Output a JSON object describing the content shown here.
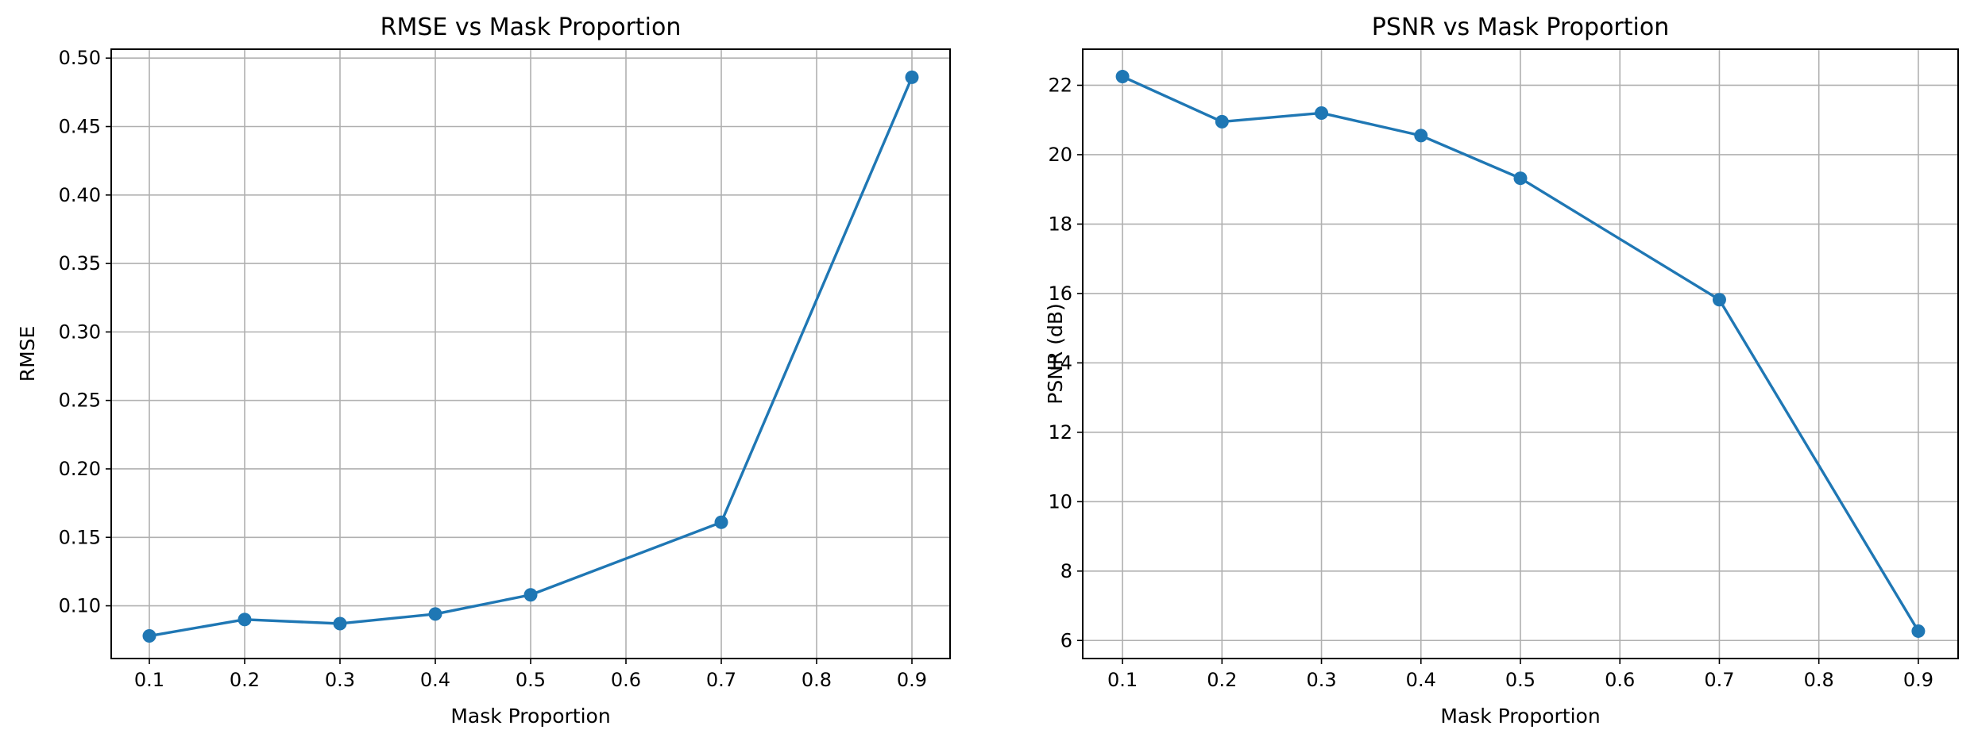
{
  "colors": {
    "series": "#1f77b4",
    "grid": "#b0b0b0",
    "axes": "#000000"
  },
  "chart_data": [
    {
      "type": "line",
      "title": "RMSE vs Mask Proportion",
      "xlabel": "Mask Proportion",
      "ylabel": "RMSE",
      "x": [
        0.1,
        0.2,
        0.3,
        0.4,
        0.5,
        0.7,
        0.9
      ],
      "series": [
        {
          "name": "RMSE",
          "values": [
            0.078,
            0.09,
            0.087,
            0.094,
            0.108,
            0.161,
            0.486
          ]
        }
      ],
      "xlim": [
        0.06,
        0.94
      ],
      "ylim": [
        0.0615,
        0.5065
      ],
      "xticks": [
        0.1,
        0.2,
        0.3,
        0.4,
        0.5,
        0.6,
        0.7,
        0.8,
        0.9
      ],
      "xtick_labels": [
        "0.1",
        "0.2",
        "0.3",
        "0.4",
        "0.5",
        "0.6",
        "0.7",
        "0.8",
        "0.9"
      ],
      "yticks": [
        0.1,
        0.15,
        0.2,
        0.25,
        0.3,
        0.35,
        0.4,
        0.45,
        0.5
      ],
      "ytick_labels": [
        "0.10",
        "0.15",
        "0.20",
        "0.25",
        "0.30",
        "0.35",
        "0.40",
        "0.45",
        "0.50"
      ],
      "grid": true,
      "marker": "circle"
    },
    {
      "type": "line",
      "title": "PSNR vs Mask Proportion",
      "xlabel": "Mask Proportion",
      "ylabel": "PSNR (dB)",
      "x": [
        0.1,
        0.2,
        0.3,
        0.4,
        0.5,
        0.7,
        0.9
      ],
      "series": [
        {
          "name": "PSNR",
          "values": [
            22.25,
            20.95,
            21.2,
            20.55,
            19.32,
            15.82,
            6.27
          ]
        }
      ],
      "xlim": [
        0.06,
        0.94
      ],
      "ylim": [
        5.48,
        23.04
      ],
      "xticks": [
        0.1,
        0.2,
        0.3,
        0.4,
        0.5,
        0.6,
        0.7,
        0.8,
        0.9
      ],
      "xtick_labels": [
        "0.1",
        "0.2",
        "0.3",
        "0.4",
        "0.5",
        "0.6",
        "0.7",
        "0.8",
        "0.9"
      ],
      "yticks": [
        6,
        8,
        10,
        12,
        14,
        16,
        18,
        20,
        22
      ],
      "ytick_labels": [
        "6",
        "8",
        "10",
        "12",
        "14",
        "16",
        "18",
        "20",
        "22"
      ],
      "grid": true,
      "marker": "circle"
    }
  ]
}
